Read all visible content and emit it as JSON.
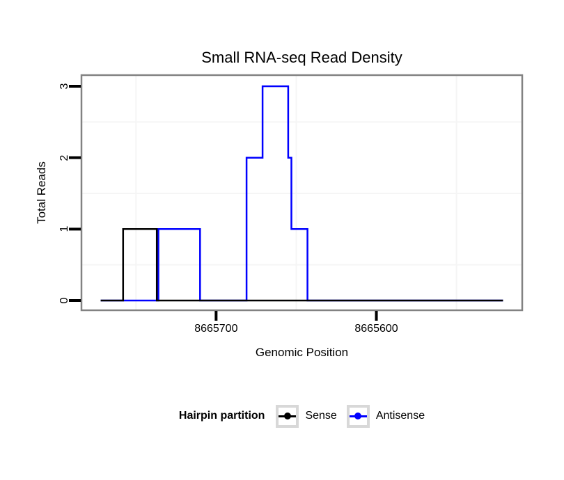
{
  "chart_data": {
    "type": "line",
    "subtype": "step-coverage",
    "title": "Small RNA-seq Read Density",
    "xlabel": "Genomic Position",
    "ylabel": "Total Reads",
    "grid": "minor-gridlines-only",
    "legend_position": "bottom",
    "x_axis": {
      "reversed": true,
      "domain_left": 8665784,
      "domain_right": 8665509,
      "ticks": [
        {
          "value": 8665700,
          "label": "8665700"
        },
        {
          "value": 8665600,
          "label": "8665600"
        }
      ],
      "minor_gridlines": [
        8665750,
        8665650,
        8665550
      ]
    },
    "y_axis": {
      "domain_bottom": -0.14,
      "domain_top": 3.16,
      "ticks": [
        {
          "value": 0,
          "label": "0"
        },
        {
          "value": 1,
          "label": "1"
        },
        {
          "value": 2,
          "label": "2"
        },
        {
          "value": 3,
          "label": "3"
        }
      ],
      "minor_gridlines": [
        0.5,
        1.5,
        2.5
      ]
    },
    "series": [
      {
        "name": "Sense",
        "color": "#000000",
        "steps": [
          [
            8665772,
            0
          ],
          [
            8665758,
            1
          ],
          [
            8665737,
            0
          ],
          [
            8665521,
            0
          ]
        ]
      },
      {
        "name": "Antisense",
        "color": "#0000ff",
        "steps": [
          [
            8665772,
            0
          ],
          [
            8665736,
            1
          ],
          [
            8665710,
            0
          ],
          [
            8665681,
            2
          ],
          [
            8665671,
            3
          ],
          [
            8665655,
            2
          ],
          [
            8665653,
            1
          ],
          [
            8665643,
            0
          ],
          [
            8665521,
            0
          ]
        ]
      }
    ]
  },
  "legend": {
    "title": "Hairpin partition",
    "items": [
      {
        "label": "Sense",
        "color": "#000000"
      },
      {
        "label": "Antisense",
        "color": "#0000ff"
      }
    ]
  },
  "colors": {
    "panel_border": "#828282",
    "minor_gridline": "#f5f5f5",
    "tick_mark": "#000000",
    "text": "#000000",
    "legend_key_border": "#d8d8d8",
    "background": "#ffffff"
  }
}
